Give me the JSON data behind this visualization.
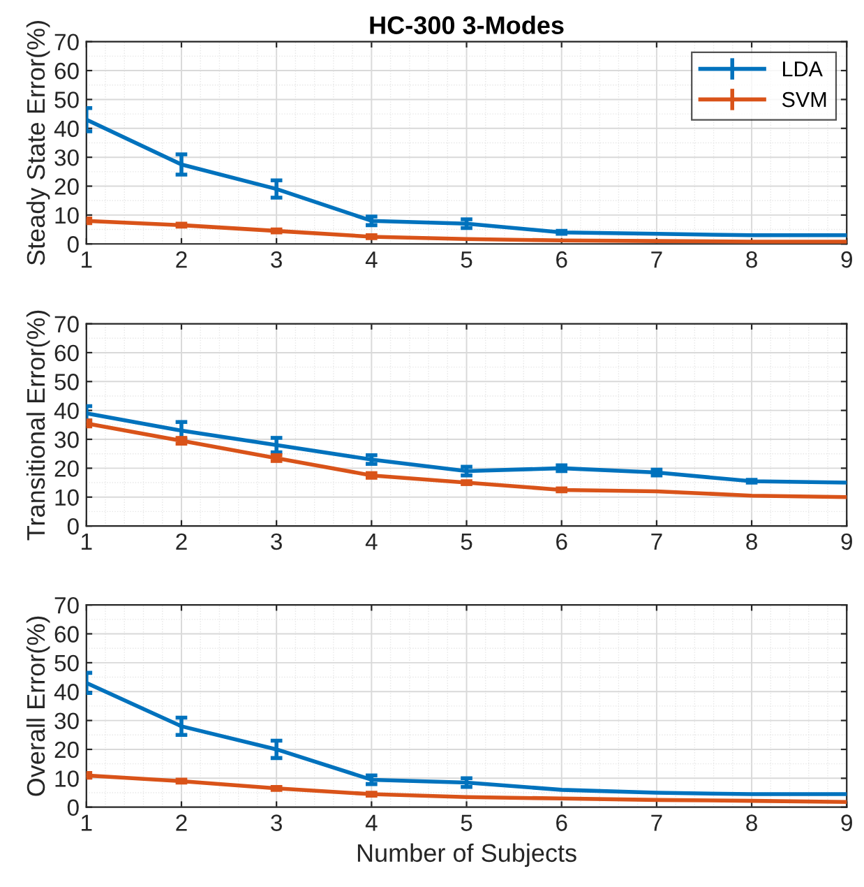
{
  "chart_data": [
    {
      "type": "line",
      "title": "HC-300 3-Modes",
      "ylabel": "Steady State Error(%)",
      "x": [
        1,
        2,
        3,
        4,
        5,
        6,
        7,
        8,
        9
      ],
      "xlim": [
        1,
        9
      ],
      "xticks": [
        1,
        2,
        3,
        4,
        5,
        6,
        7,
        8,
        9
      ],
      "ylim": [
        0,
        70
      ],
      "yticks": [
        0,
        10,
        20,
        30,
        40,
        50,
        60,
        70
      ],
      "grid": true,
      "legend": "top right",
      "series": [
        {
          "name": "LDA",
          "color": "#0072bd",
          "values": [
            43,
            27.5,
            19,
            8,
            7,
            4,
            3.5,
            3,
            3
          ],
          "errors": [
            4,
            3.5,
            3,
            1.5,
            1.5,
            0.5,
            null,
            null,
            null
          ]
        },
        {
          "name": "SVM",
          "color": "#d95319",
          "values": [
            8,
            6.5,
            4.5,
            2.5,
            1.7,
            1.2,
            1,
            0.8,
            0.8
          ],
          "errors": [
            0.8,
            0.5,
            0.5,
            0.5,
            null,
            null,
            null,
            null,
            null
          ]
        }
      ]
    },
    {
      "type": "line",
      "ylabel": "Transitional Error(%)",
      "x": [
        1,
        2,
        3,
        4,
        5,
        6,
        7,
        8,
        9
      ],
      "xlim": [
        1,
        9
      ],
      "xticks": [
        1,
        2,
        3,
        4,
        5,
        6,
        7,
        8,
        9
      ],
      "ylim": [
        0,
        70
      ],
      "yticks": [
        0,
        10,
        20,
        30,
        40,
        50,
        60,
        70
      ],
      "grid": true,
      "series": [
        {
          "color": "#0072bd",
          "values": [
            39,
            33,
            28,
            23,
            19,
            20,
            18.5,
            15.5,
            15
          ],
          "errors": [
            2.5,
            3,
            2.5,
            1.5,
            1.5,
            1,
            1,
            0.5,
            null
          ]
        },
        {
          "color": "#d95319",
          "values": [
            35.5,
            29.5,
            23.5,
            17.5,
            15,
            12.5,
            12,
            10.5,
            10
          ],
          "errors": [
            1,
            1,
            1,
            0.8,
            0.5,
            0.5,
            null,
            null,
            null
          ]
        }
      ]
    },
    {
      "type": "line",
      "ylabel": "Overall Error(%)",
      "xlabel": "Number of Subjects",
      "x": [
        1,
        2,
        3,
        4,
        5,
        6,
        7,
        8,
        9
      ],
      "xlim": [
        1,
        9
      ],
      "xticks": [
        1,
        2,
        3,
        4,
        5,
        6,
        7,
        8,
        9
      ],
      "ylim": [
        0,
        70
      ],
      "yticks": [
        0,
        10,
        20,
        30,
        40,
        50,
        60,
        70
      ],
      "grid": true,
      "series": [
        {
          "color": "#0072bd",
          "values": [
            43,
            28,
            20,
            9.5,
            8.5,
            6,
            5,
            4.5,
            4.5
          ],
          "errors": [
            3.5,
            3,
            3,
            1.5,
            1.5,
            null,
            null,
            null,
            null
          ]
        },
        {
          "color": "#d95319",
          "values": [
            11,
            9,
            6.5,
            4.5,
            3.5,
            3,
            2.5,
            2.2,
            1.8
          ],
          "errors": [
            0.8,
            0.5,
            0.5,
            0.5,
            null,
            null,
            null,
            null,
            null
          ]
        }
      ]
    }
  ]
}
